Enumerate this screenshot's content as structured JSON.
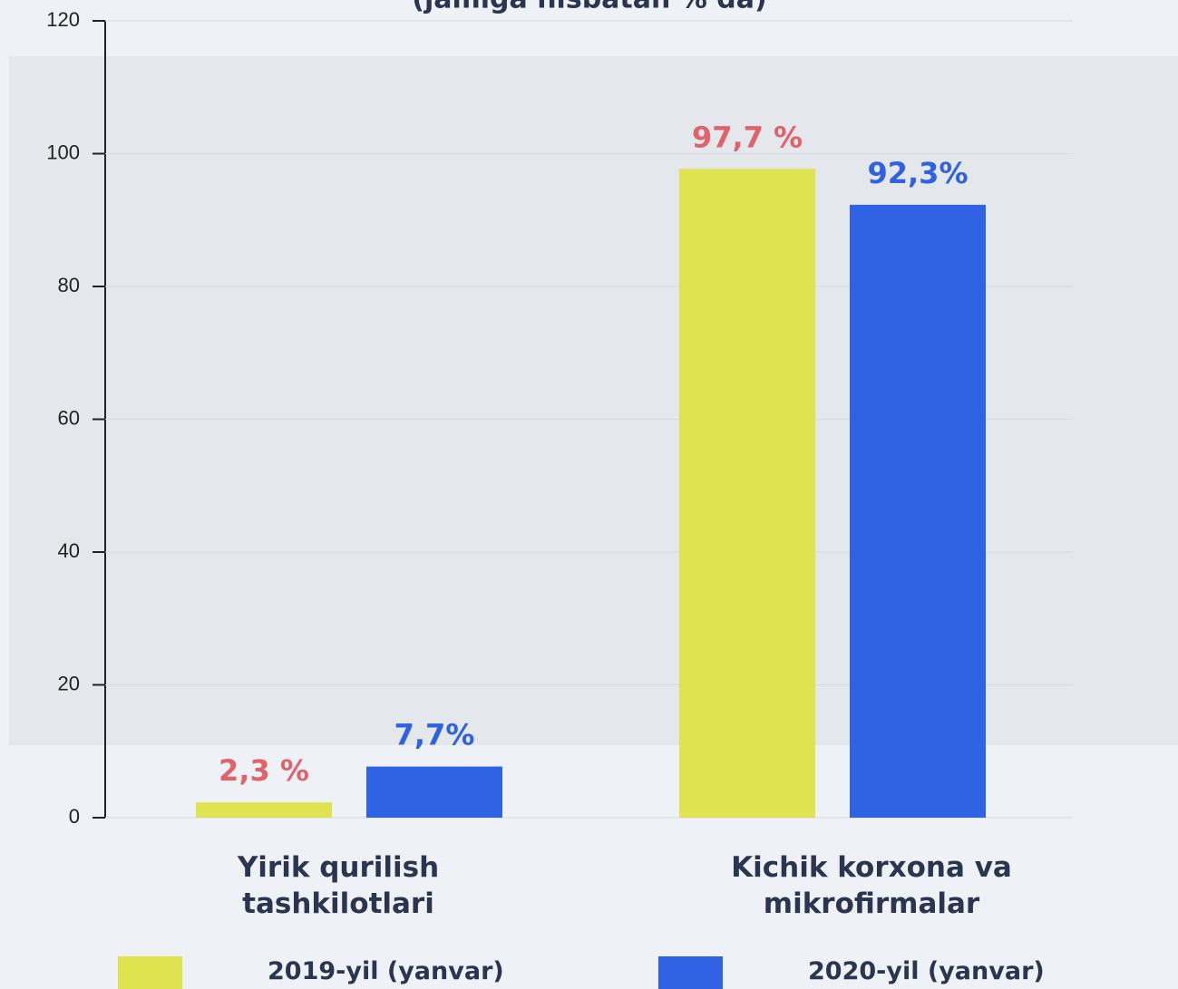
{
  "chart_data": {
    "type": "bar",
    "title": "(jamiga nisbatan % da)",
    "categories": [
      "Yirik qurilish tashkilotlari",
      "Kichik korxona va mikrofirmalar"
    ],
    "series": [
      {
        "name": "2019-yil (yanvar)",
        "color": "#dfe34f",
        "label_color": "#e0626a",
        "values": [
          2.3,
          97.7
        ],
        "value_labels": [
          "2,3 %",
          "97,7 %"
        ]
      },
      {
        "name": "2020-yil (yanvar)",
        "color": "#2f63e3",
        "label_color": "#2e62e0",
        "values": [
          7.7,
          92.3
        ],
        "value_labels": [
          "7,7%",
          "92,3%"
        ]
      }
    ],
    "ylim": [
      0,
      120
    ],
    "yticks": [
      0,
      20,
      40,
      60,
      80,
      100,
      120
    ],
    "grid": true
  }
}
